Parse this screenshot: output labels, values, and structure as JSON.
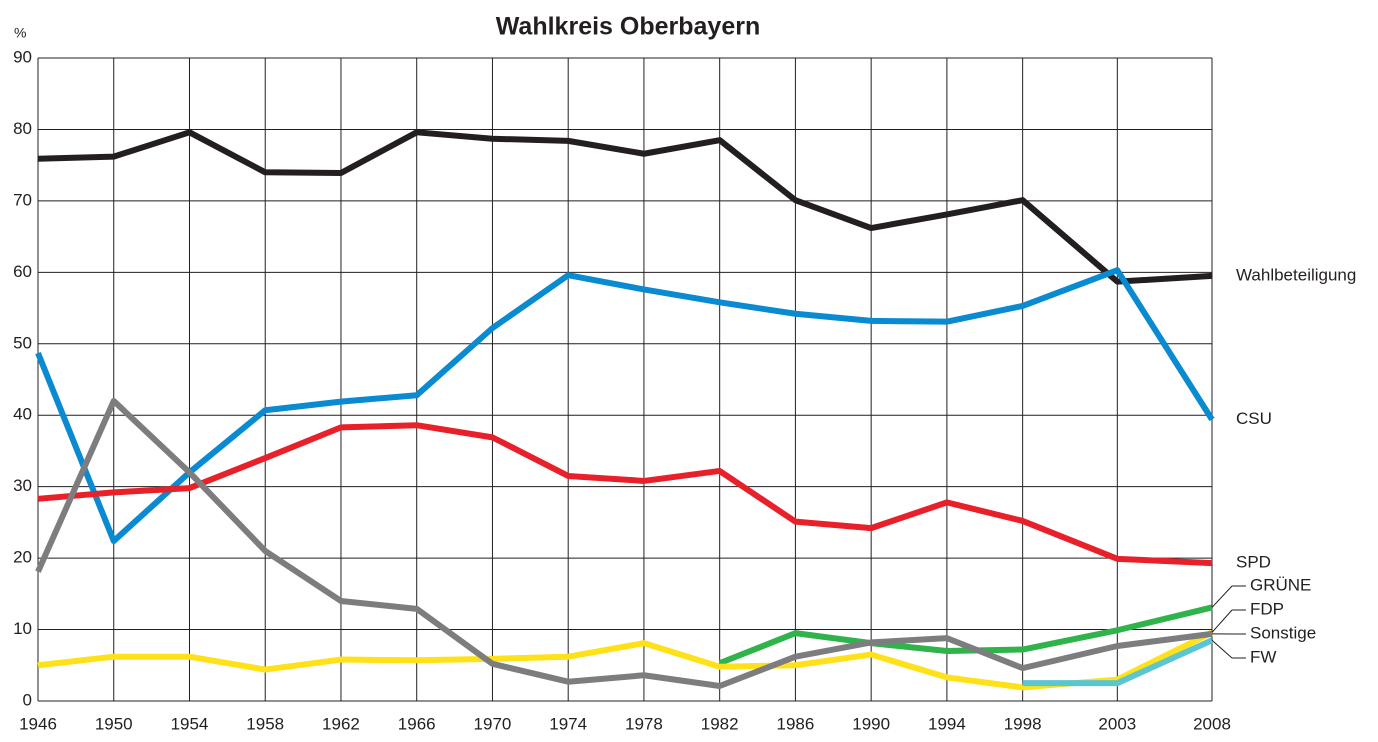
{
  "chart_data": {
    "type": "line",
    "title": "Wahlkreis Oberbayern",
    "y_label": "%",
    "x": [
      1946,
      1950,
      1954,
      1958,
      1962,
      1966,
      1970,
      1974,
      1978,
      1982,
      1986,
      1990,
      1994,
      1998,
      2003,
      2008
    ],
    "xlim": [
      1946,
      2008
    ],
    "xticks": [
      1946,
      1950,
      1954,
      1958,
      1962,
      1966,
      1970,
      1974,
      1978,
      1982,
      1986,
      1990,
      1994,
      1998,
      2003,
      2008
    ],
    "ylim": [
      0,
      90
    ],
    "yticks": [
      0,
      10,
      20,
      30,
      40,
      50,
      60,
      70,
      80,
      90
    ],
    "grid": true,
    "series": [
      {
        "name": "Wahlbeteiligung",
        "color": "#231f20",
        "values": [
          75.9,
          76.2,
          79.6,
          74.0,
          73.9,
          79.6,
          78.7,
          78.4,
          76.6,
          78.5,
          70.1,
          66.2,
          68.1,
          70.1,
          58.7,
          59.5
        ]
      },
      {
        "name": "CSU",
        "color": "#0a8ad0",
        "values": [
          48.7,
          22.4,
          32.0,
          40.7,
          41.9,
          42.8,
          52.2,
          59.6,
          57.6,
          55.8,
          54.2,
          53.2,
          53.1,
          55.3,
          60.3,
          39.4
        ]
      },
      {
        "name": "SPD",
        "color": "#e8202a",
        "values": [
          28.3,
          29.2,
          29.8,
          34.0,
          38.3,
          38.6,
          36.9,
          31.5,
          30.8,
          32.2,
          25.1,
          24.2,
          27.8,
          25.2,
          19.9,
          19.3
        ]
      },
      {
        "name": "GRÜNE",
        "color": "#2fb34a",
        "values": [
          null,
          null,
          null,
          null,
          null,
          null,
          null,
          null,
          null,
          5.3,
          9.5,
          8.1,
          7.0,
          7.2,
          9.9,
          13.1
        ]
      },
      {
        "name": "FDP",
        "color": "#ffe11a",
        "values": [
          5.0,
          6.2,
          6.2,
          4.4,
          5.8,
          5.7,
          5.9,
          6.2,
          8.1,
          4.8,
          5.0,
          6.5,
          3.3,
          1.9,
          3.0,
          9.6
        ]
      },
      {
        "name": "Sonstige",
        "color": "#7d7d80",
        "values": [
          18.1,
          42.0,
          32.0,
          21.0,
          14.0,
          12.9,
          5.2,
          2.7,
          3.6,
          2.1,
          6.2,
          8.2,
          8.8,
          4.6,
          7.7,
          9.4
        ]
      },
      {
        "name": "FW",
        "color": "#5cc6d0",
        "values": [
          null,
          null,
          null,
          null,
          null,
          null,
          null,
          null,
          null,
          null,
          null,
          null,
          null,
          2.5,
          2.5,
          8.5
        ]
      }
    ]
  }
}
